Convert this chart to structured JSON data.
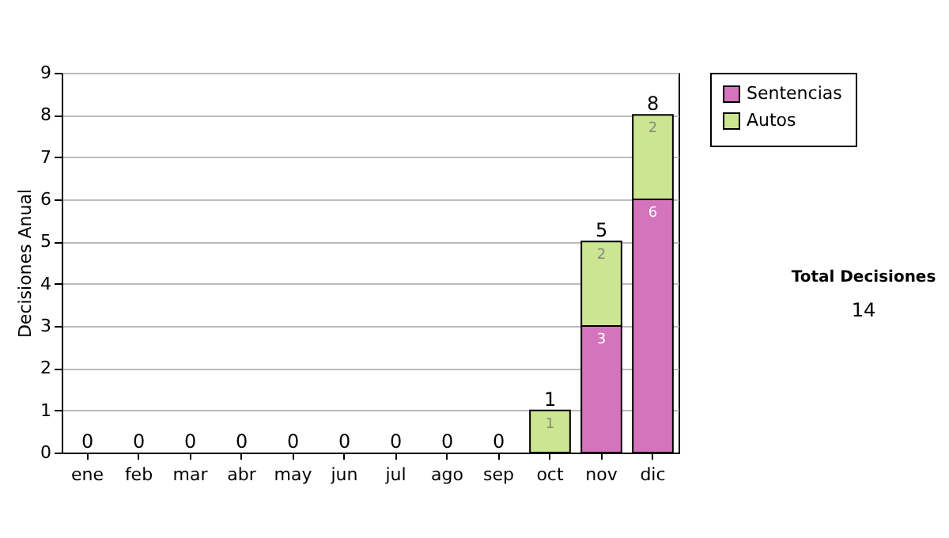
{
  "chart_data": {
    "type": "bar",
    "stacked": true,
    "ylabel": "Decisiones Anual",
    "categories": [
      "ene",
      "feb",
      "mar",
      "abr",
      "may",
      "jun",
      "jul",
      "ago",
      "sep",
      "oct",
      "nov",
      "dic"
    ],
    "series": [
      {
        "name": "Sentencias",
        "color": "#d474bc",
        "values": [
          0,
          0,
          0,
          0,
          0,
          0,
          0,
          0,
          0,
          0,
          3,
          6
        ],
        "value_labels": [
          null,
          null,
          null,
          null,
          null,
          null,
          null,
          null,
          null,
          null,
          "3",
          "6"
        ]
      },
      {
        "name": "Autos",
        "color": "#cce590",
        "values": [
          0,
          0,
          0,
          0,
          0,
          0,
          0,
          0,
          0,
          1,
          2,
          2
        ],
        "value_labels": [
          null,
          null,
          null,
          null,
          null,
          null,
          null,
          null,
          null,
          "1",
          "2",
          "2"
        ]
      }
    ],
    "totals": [
      "0",
      "0",
      "0",
      "0",
      "0",
      "0",
      "0",
      "0",
      "0",
      "1",
      "5",
      "8"
    ],
    "ylim": [
      0,
      9
    ],
    "yticks": [
      0,
      1,
      2,
      3,
      4,
      5,
      6,
      7,
      8,
      9
    ],
    "grid": "y",
    "legend": "right",
    "annotations": [
      "Total Decisiones",
      "14"
    ]
  }
}
